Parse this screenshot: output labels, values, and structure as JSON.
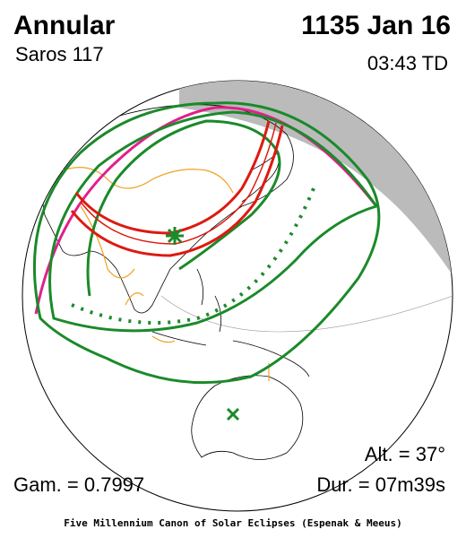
{
  "header": {
    "title": "Annular",
    "saros": "Saros 117",
    "date": "1135 Jan 16",
    "time": "03:43 TD"
  },
  "stats": {
    "altitude": "Alt. = 37°",
    "gamma": "Gam. = 0.7997",
    "duration": "Dur. = 07m39s"
  },
  "footer": "Five Millennium Canon of Solar Eclipses (Espenak & Meeus)"
}
